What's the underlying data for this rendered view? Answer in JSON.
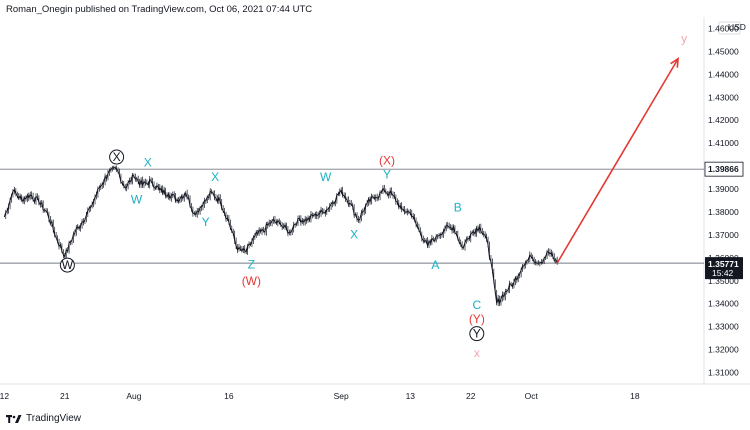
{
  "header": {
    "publisher": "Roman_Onegin published on TradingView.com, Oct 06, 2021 07:44 UTC"
  },
  "footer": {
    "brand": "TradingView"
  },
  "colors": {
    "price_line": "#131722",
    "wave_cyan": "#1cb0c4",
    "wave_red": "#e53935",
    "wave_pink": "#f5a3ad",
    "projection": "#e53935",
    "level_line": "#787b86"
  },
  "chart_data": {
    "type": "line",
    "currency": "USD",
    "ylim": [
      1.305,
      1.465
    ],
    "y_ticks": [
      "1.46000",
      "1.45000",
      "1.44000",
      "1.43000",
      "1.42000",
      "1.41000",
      "1.39000",
      "1.38000",
      "1.37000",
      "1.36000",
      "1.35000",
      "1.34000",
      "1.33000",
      "1.32000",
      "1.31000"
    ],
    "y_tick_values": [
      1.46,
      1.45,
      1.44,
      1.43,
      1.42,
      1.41,
      1.39,
      1.38,
      1.37,
      1.36,
      1.35,
      1.34,
      1.33,
      1.32,
      1.31
    ],
    "x_ticks": [
      {
        "label": "12",
        "day": 0
      },
      {
        "label": "21",
        "day": 7
      },
      {
        "label": "Aug",
        "day": 15
      },
      {
        "label": "16",
        "day": 26
      },
      {
        "label": "Sep",
        "day": 39
      },
      {
        "label": "13",
        "day": 47
      },
      {
        "label": "22",
        "day": 54
      },
      {
        "label": "Oct",
        "day": 61
      },
      {
        "label": "18",
        "day": 73
      }
    ],
    "xlim": [
      -0.5,
      81
    ],
    "levels": [
      {
        "name": "resistance",
        "value": 1.39866,
        "label": "1.39866"
      },
      {
        "name": "support",
        "value": 1.3577,
        "label": "1.35771"
      }
    ],
    "price_tag": {
      "value": 1.3577,
      "label": "1.35771",
      "time": "15:42"
    },
    "series": [
      {
        "x": [
          0,
          1,
          2,
          3,
          4,
          5,
          6,
          7,
          8,
          9,
          10,
          11,
          12,
          13,
          14,
          15,
          16,
          17,
          18,
          19,
          20,
          21,
          22,
          23,
          24,
          25,
          26,
          27,
          28,
          29,
          30,
          31,
          32,
          33,
          34,
          35,
          36,
          37,
          38,
          39,
          40,
          41,
          42,
          43,
          44,
          45,
          46,
          47,
          48,
          49,
          50,
          51,
          52,
          53,
          54,
          55,
          56,
          57,
          58,
          59,
          60,
          61,
          62,
          63,
          64
        ],
        "y": [
          1.3778,
          1.389,
          1.3855,
          1.3875,
          1.3842,
          1.3795,
          1.369,
          1.3605,
          1.3702,
          1.3758,
          1.3822,
          1.3905,
          1.3968,
          1.3985,
          1.3905,
          1.3955,
          1.3918,
          1.3935,
          1.3895,
          1.3878,
          1.3855,
          1.3882,
          1.3795,
          1.3832,
          1.3885,
          1.3845,
          1.3755,
          1.3635,
          1.3625,
          1.3695,
          1.3718,
          1.3762,
          1.3745,
          1.3712,
          1.3772,
          1.3762,
          1.3792,
          1.3798,
          1.3842,
          1.3895,
          1.3838,
          1.3765,
          1.3838,
          1.3865,
          1.3893,
          1.3872,
          1.3812,
          1.3795,
          1.3722,
          1.3652,
          1.3695,
          1.3725,
          1.3735,
          1.3645,
          1.3705,
          1.3735,
          1.3658,
          1.3402,
          1.3452,
          1.3495,
          1.3565,
          1.3605,
          1.3578,
          1.3625,
          1.3577
        ]
      }
    ],
    "projection": {
      "from": {
        "day": 64,
        "value": 1.3577
      },
      "to": {
        "day": 78,
        "value": 1.4468
      }
    },
    "annotations": [
      {
        "text": "W",
        "style": "black-circle",
        "day": 7.3,
        "value": 1.3551
      },
      {
        "text": "X",
        "style": "black-circle",
        "day": 13,
        "value": 1.4022
      },
      {
        "text": "X",
        "style": "cyan",
        "day": 16.6,
        "value": 1.3998
      },
      {
        "text": "W",
        "style": "cyan",
        "day": 15.3,
        "value": 1.3838
      },
      {
        "text": "X",
        "style": "cyan",
        "day": 24.4,
        "value": 1.3935
      },
      {
        "text": "Y",
        "style": "cyan",
        "day": 23.3,
        "value": 1.3738
      },
      {
        "text": "Z",
        "style": "cyan",
        "day": 28.6,
        "value": 1.3553
      },
      {
        "text": "(W)",
        "style": "red",
        "day": 28.6,
        "value": 1.3482
      },
      {
        "text": "W",
        "style": "cyan",
        "day": 37.2,
        "value": 1.3935
      },
      {
        "text": "X",
        "style": "cyan",
        "day": 40.5,
        "value": 1.3685
      },
      {
        "text": "(X)",
        "style": "red",
        "day": 44.3,
        "value": 1.4008
      },
      {
        "text": "Y",
        "style": "cyan",
        "day": 44.3,
        "value": 1.3945
      },
      {
        "text": "B",
        "style": "cyan",
        "day": 52.5,
        "value": 1.3802
      },
      {
        "text": "A",
        "style": "cyan",
        "day": 49.9,
        "value": 1.3552
      },
      {
        "text": "C",
        "style": "cyan",
        "day": 54.7,
        "value": 1.3378
      },
      {
        "text": "(Y)",
        "style": "red",
        "day": 54.7,
        "value": 1.3315
      },
      {
        "text": "Y",
        "style": "black-circle",
        "day": 54.7,
        "value": 1.3252
      },
      {
        "text": "x",
        "style": "pink",
        "day": 54.7,
        "value": 1.3167
      },
      {
        "text": "y",
        "style": "pink",
        "day": 78.7,
        "value": 1.4538
      }
    ]
  }
}
